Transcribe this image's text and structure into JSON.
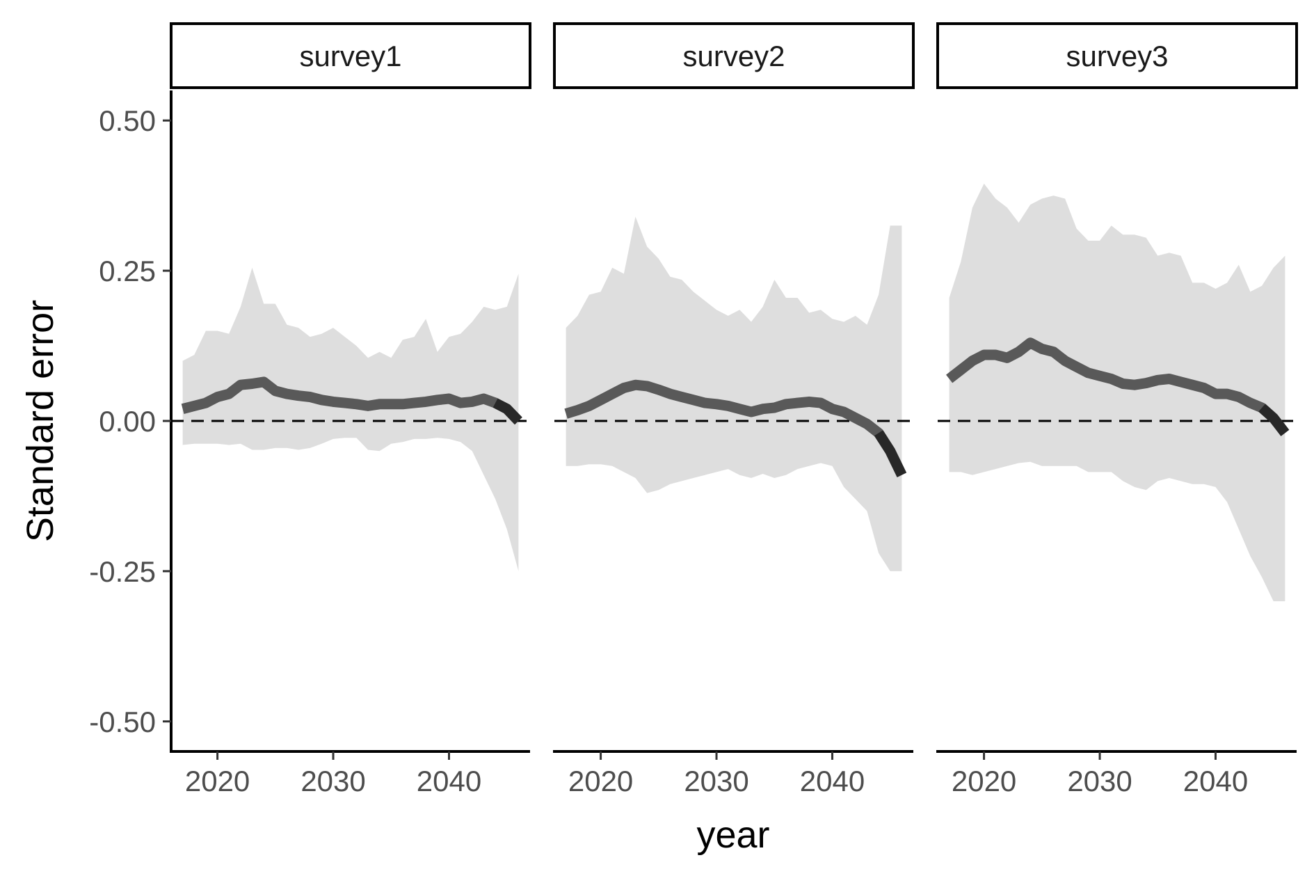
{
  "chart_data": {
    "type": "area",
    "xlabel": "year",
    "ylabel": "Standard error",
    "ylim": [
      -0.55,
      0.55
    ],
    "xlim": [
      2016,
      2047
    ],
    "y_ticks": [
      {
        "value": 0.5,
        "label": "0.50"
      },
      {
        "value": 0.25,
        "label": "0.25"
      },
      {
        "value": 0.0,
        "label": "0.00"
      },
      {
        "value": -0.25,
        "label": "-0.25"
      },
      {
        "value": -0.5,
        "label": "-0.50"
      }
    ],
    "x_ticks": [
      {
        "value": 2020,
        "label": "2020"
      },
      {
        "value": 2030,
        "label": "2030"
      },
      {
        "value": 2040,
        "label": "2040"
      }
    ],
    "reference_line": 0,
    "colors": {
      "band": "#dedede",
      "line": "#595959",
      "line_end": "#000000",
      "reference": "#000000"
    },
    "facets": [
      {
        "name": "survey1",
        "years": [
          2017,
          2018,
          2019,
          2020,
          2021,
          2022,
          2023,
          2024,
          2025,
          2026,
          2027,
          2028,
          2029,
          2030,
          2031,
          2032,
          2033,
          2034,
          2035,
          2036,
          2037,
          2038,
          2039,
          2040,
          2041,
          2042,
          2043,
          2044,
          2045,
          2046
        ],
        "median": [
          0.02,
          0.025,
          0.03,
          0.04,
          0.045,
          0.06,
          0.062,
          0.065,
          0.05,
          0.045,
          0.042,
          0.04,
          0.035,
          0.032,
          0.03,
          0.028,
          0.025,
          0.028,
          0.028,
          0.028,
          0.03,
          0.032,
          0.035,
          0.037,
          0.03,
          0.032,
          0.037,
          0.03,
          0.02,
          0.0
        ],
        "upper": [
          0.1,
          0.11,
          0.15,
          0.15,
          0.145,
          0.19,
          0.255,
          0.195,
          0.195,
          0.16,
          0.155,
          0.14,
          0.145,
          0.155,
          0.14,
          0.125,
          0.105,
          0.115,
          0.105,
          0.135,
          0.14,
          0.17,
          0.115,
          0.14,
          0.145,
          0.165,
          0.19,
          0.185,
          0.19,
          0.245
        ],
        "lower": [
          -0.04,
          -0.038,
          -0.038,
          -0.038,
          -0.04,
          -0.038,
          -0.048,
          -0.048,
          -0.045,
          -0.045,
          -0.048,
          -0.045,
          -0.038,
          -0.03,
          -0.028,
          -0.028,
          -0.048,
          -0.05,
          -0.038,
          -0.035,
          -0.03,
          -0.03,
          -0.028,
          -0.03,
          -0.035,
          -0.05,
          -0.09,
          -0.13,
          -0.18,
          -0.25
        ]
      },
      {
        "name": "survey2",
        "years": [
          2017,
          2018,
          2019,
          2020,
          2021,
          2022,
          2023,
          2024,
          2025,
          2026,
          2027,
          2028,
          2029,
          2030,
          2031,
          2032,
          2033,
          2034,
          2035,
          2036,
          2037,
          2038,
          2039,
          2040,
          2041,
          2042,
          2043,
          2044,
          2045,
          2046
        ],
        "median": [
          0.012,
          0.018,
          0.025,
          0.035,
          0.045,
          0.055,
          0.06,
          0.058,
          0.052,
          0.045,
          0.04,
          0.035,
          0.03,
          0.028,
          0.025,
          0.02,
          0.015,
          0.02,
          0.022,
          0.028,
          0.03,
          0.032,
          0.03,
          0.02,
          0.015,
          0.005,
          -0.005,
          -0.02,
          -0.05,
          -0.09
        ],
        "upper": [
          0.155,
          0.175,
          0.21,
          0.215,
          0.255,
          0.245,
          0.34,
          0.29,
          0.27,
          0.24,
          0.235,
          0.215,
          0.2,
          0.185,
          0.175,
          0.185,
          0.165,
          0.19,
          0.235,
          0.205,
          0.205,
          0.18,
          0.185,
          0.17,
          0.165,
          0.175,
          0.16,
          0.21,
          0.325,
          0.325
        ],
        "lower": [
          -0.075,
          -0.075,
          -0.072,
          -0.072,
          -0.075,
          -0.085,
          -0.095,
          -0.12,
          -0.115,
          -0.105,
          -0.1,
          -0.095,
          -0.09,
          -0.085,
          -0.08,
          -0.09,
          -0.095,
          -0.088,
          -0.095,
          -0.09,
          -0.08,
          -0.075,
          -0.07,
          -0.075,
          -0.11,
          -0.13,
          -0.15,
          -0.22,
          -0.25,
          -0.25
        ]
      },
      {
        "name": "survey3",
        "years": [
          2017,
          2018,
          2019,
          2020,
          2021,
          2022,
          2023,
          2024,
          2025,
          2026,
          2027,
          2028,
          2029,
          2030,
          2031,
          2032,
          2033,
          2034,
          2035,
          2036,
          2037,
          2038,
          2039,
          2040,
          2041,
          2042,
          2043,
          2044,
          2045,
          2046
        ],
        "median": [
          0.07,
          0.085,
          0.1,
          0.11,
          0.11,
          0.105,
          0.115,
          0.13,
          0.12,
          0.115,
          0.1,
          0.09,
          0.08,
          0.075,
          0.07,
          0.062,
          0.06,
          0.063,
          0.068,
          0.07,
          0.065,
          0.06,
          0.055,
          0.045,
          0.045,
          0.04,
          0.03,
          0.022,
          0.005,
          -0.02
        ],
        "upper": [
          0.205,
          0.265,
          0.355,
          0.395,
          0.37,
          0.355,
          0.33,
          0.36,
          0.37,
          0.375,
          0.37,
          0.32,
          0.3,
          0.3,
          0.325,
          0.31,
          0.31,
          0.305,
          0.275,
          0.28,
          0.275,
          0.23,
          0.23,
          0.22,
          0.23,
          0.26,
          0.215,
          0.225,
          0.255,
          0.275
        ],
        "lower": [
          -0.085,
          -0.085,
          -0.09,
          -0.085,
          -0.08,
          -0.075,
          -0.07,
          -0.068,
          -0.075,
          -0.075,
          -0.075,
          -0.075,
          -0.085,
          -0.085,
          -0.085,
          -0.1,
          -0.11,
          -0.115,
          -0.1,
          -0.095,
          -0.1,
          -0.105,
          -0.105,
          -0.11,
          -0.135,
          -0.18,
          -0.225,
          -0.26,
          -0.3,
          -0.3
        ]
      }
    ]
  }
}
